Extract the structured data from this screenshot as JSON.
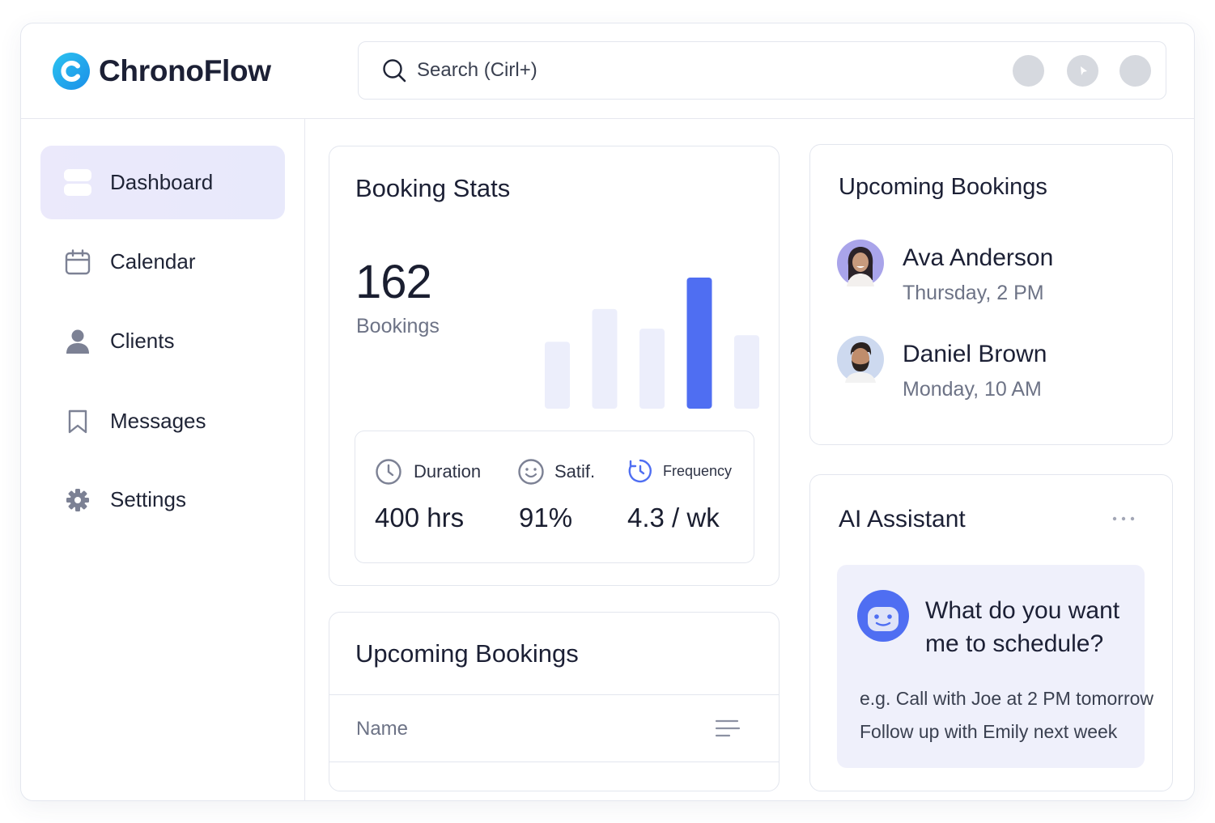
{
  "app": {
    "name": "ChronoFlow"
  },
  "search": {
    "placeholder": "Search (Cirl+)"
  },
  "sidebar": {
    "items": [
      {
        "label": "Dashboard",
        "icon": "dashboard-icon",
        "active": true
      },
      {
        "label": "Calendar",
        "icon": "calendar-icon",
        "active": false
      },
      {
        "label": "Clients",
        "icon": "user-icon",
        "active": false
      },
      {
        "label": "Messages",
        "icon": "bookmark-icon",
        "active": false
      },
      {
        "label": "Settings",
        "icon": "gear-icon",
        "active": false
      }
    ]
  },
  "booking_stats": {
    "title": "Booking Stats",
    "total": "162",
    "total_label": "Bookings",
    "bars": [
      0.51,
      0.76,
      0.61,
      1.0,
      0.56
    ],
    "highlight_index": 3,
    "metrics": [
      {
        "label": "Duration",
        "value": "400 hrs",
        "icon": "clock-icon"
      },
      {
        "label": "Satif.",
        "value": "91%",
        "icon": "smile-icon"
      },
      {
        "label": "Frequency",
        "value": "4.3 / wk",
        "icon": "refresh-clock-icon"
      }
    ]
  },
  "upcoming": {
    "title": "Upcoming Bookings",
    "items": [
      {
        "name": "Ava Anderson",
        "time": "Thursday, 2 PM"
      },
      {
        "name": "Daniel Brown",
        "time": "Monday, 10 AM"
      }
    ]
  },
  "upcoming_table": {
    "title": "Upcoming Bookings",
    "column": "Name"
  },
  "assistant": {
    "title": "AI Assistant",
    "question": "What do you want me to schedule?",
    "examples": [
      "e.g.  Call with Joe at 2 PM tomorrow",
      "Follow up with Emily next week"
    ]
  },
  "colors": {
    "accent": "#4f6ef2",
    "bar_light": "#eceefb",
    "active_nav": "#ebe9fb",
    "logo": "#1fa8ee"
  }
}
